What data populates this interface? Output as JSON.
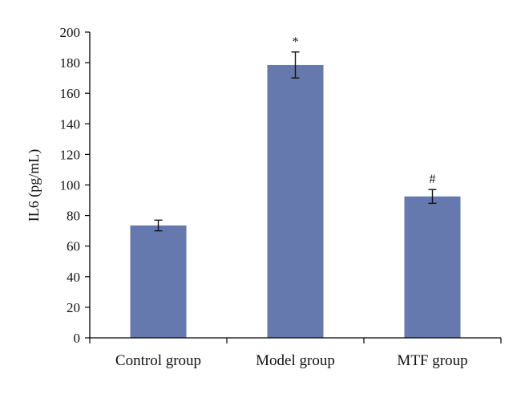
{
  "chart_data": {
    "type": "bar",
    "title": "",
    "xlabel": "",
    "ylabel": "IL6 (pg/mL)",
    "categories": [
      "Control group",
      "Model group",
      "MTF group"
    ],
    "values": [
      73.5,
      178.5,
      92.5
    ],
    "error": [
      3.5,
      8.5,
      4.5
    ],
    "annotations": [
      "",
      "*",
      "#"
    ],
    "ylim": [
      0,
      200
    ],
    "yticks": [
      0,
      20,
      40,
      60,
      80,
      100,
      120,
      140,
      160,
      180,
      200
    ],
    "grid": false,
    "legend": "none",
    "bar_color": "#6679ae"
  }
}
